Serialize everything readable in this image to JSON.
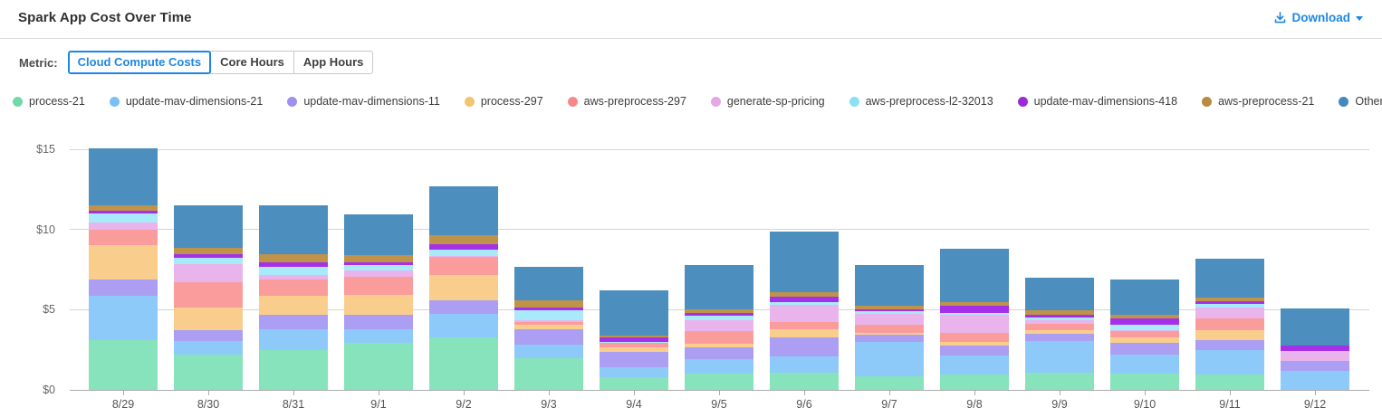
{
  "header": {
    "title": "Spark App Cost Over Time",
    "download_label": "Download"
  },
  "metric": {
    "label": "Metric:",
    "options": [
      {
        "label": "Cloud Compute Costs",
        "selected": true
      },
      {
        "label": "Core Hours",
        "selected": false
      },
      {
        "label": "App Hours",
        "selected": false
      }
    ]
  },
  "colors": {
    "accent": "#1e87e5",
    "grid": "#d4d4d4",
    "axis_line": "#ababab",
    "y_axis_text": "#666666",
    "x_axis_text": "#565656"
  },
  "chart_data": {
    "type": "bar",
    "stacked": true,
    "title": "Spark App Cost Over Time",
    "xlabel": "",
    "ylabel": "",
    "ylim": [
      0,
      15
    ],
    "y_tick_labels": [
      "$0",
      "$5",
      "$10",
      "$15"
    ],
    "y_tick_values": [
      0,
      5,
      10,
      15
    ],
    "grid": "horizontal",
    "legend_position": "top",
    "categories": [
      "8/29",
      "8/30",
      "8/31",
      "9/1",
      "9/2",
      "9/3",
      "9/4",
      "9/5",
      "9/6",
      "9/7",
      "9/8",
      "9/9",
      "9/10",
      "9/11",
      "9/12"
    ],
    "series": [
      {
        "name": "process-21",
        "color": "#87E3BC",
        "dot_color": "#70D9A6",
        "values": [
          3.1,
          2.2,
          2.5,
          2.95,
          3.25,
          1.95,
          0.81,
          1.04,
          1.09,
          0.85,
          0.94,
          1.09,
          1.04,
          0.94,
          0
        ]
      },
      {
        "name": "update-mav-dimensions-21",
        "color": "#8DC9F9",
        "dot_color": "#7BC0F5",
        "values": [
          2.76,
          0.86,
          1.26,
          0.81,
          1.5,
          0.85,
          0.6,
          0.88,
          1.02,
          2.16,
          1.22,
          1.97,
          1.16,
          1.56,
          1.18
        ]
      },
      {
        "name": "update-mav-dimensions-11",
        "color": "#AB9EF3",
        "dot_color": "#A091EC",
        "values": [
          1.03,
          0.64,
          0.9,
          0.9,
          0.83,
          1.0,
          0.94,
          0.72,
          1.18,
          0.43,
          0.62,
          0.42,
          0.71,
          0.6,
          0.64
        ]
      },
      {
        "name": "process-297",
        "color": "#F9CE8D",
        "dot_color": "#F3C470",
        "values": [
          2.11,
          1.43,
          1.22,
          1.26,
          1.56,
          0.28,
          0.28,
          0.23,
          0.51,
          0.13,
          0.23,
          0.22,
          0.34,
          0.6,
          0
        ]
      },
      {
        "name": "aws-preprocess-297",
        "color": "#FB9C9C",
        "dot_color": "#F68A8A",
        "values": [
          1.0,
          1.57,
          1.01,
          1.12,
          1.13,
          0.15,
          0.28,
          0.81,
          0.43,
          0.47,
          0.56,
          0.44,
          0.41,
          0.75,
          0
        ]
      },
      {
        "name": "generate-sp-pricing",
        "color": "#E9B4EB",
        "dot_color": "#E5A7E3",
        "values": [
          0.46,
          1.13,
          0.3,
          0.42,
          0.09,
          0.09,
          0.05,
          0.66,
          1.05,
          0.72,
          1.09,
          0.18,
          0.08,
          0.68,
          0.62
        ]
      },
      {
        "name": "aws-preprocess-l2-32013",
        "color": "#A9EAFA",
        "dot_color": "#89E1F3",
        "values": [
          0.52,
          0.43,
          0.47,
          0.34,
          0.41,
          0.62,
          0.05,
          0.28,
          0.17,
          0.12,
          0.13,
          0.18,
          0.32,
          0.22,
          0
        ]
      },
      {
        "name": "update-mav-dimensions-418",
        "color": "#A431E9",
        "dot_color": "#9C2AD6",
        "values": [
          0.2,
          0.19,
          0.32,
          0.14,
          0.34,
          0.17,
          0.28,
          0.15,
          0.38,
          0.16,
          0.43,
          0.21,
          0.38,
          0.19,
          0.34
        ]
      },
      {
        "name": "aws-preprocess-21",
        "color": "#BF9349",
        "dot_color": "#B98A40",
        "values": [
          0.33,
          0.38,
          0.47,
          0.45,
          0.51,
          0.47,
          0.09,
          0.26,
          0.28,
          0.22,
          0.23,
          0.26,
          0.24,
          0.23,
          0
        ]
      },
      {
        "name": "Other",
        "color": "#4C8EBD",
        "dot_color": "#4589BC",
        "values": [
          3.54,
          2.67,
          3.04,
          2.54,
          3.06,
          2.12,
          2.82,
          2.74,
          3.79,
          2.54,
          3.35,
          2.02,
          2.22,
          2.43,
          2.32
        ]
      }
    ]
  }
}
